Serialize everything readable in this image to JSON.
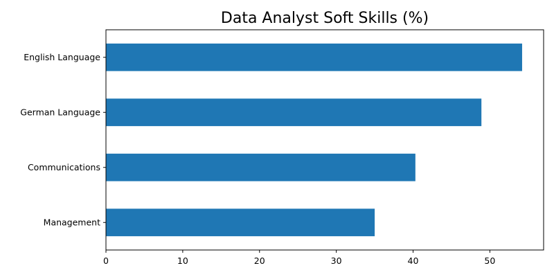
{
  "chart_data": {
    "type": "bar",
    "orientation": "horizontal",
    "title": "Data Analyst Soft Skills (%)",
    "xlabel": "",
    "ylabel": "",
    "categories": [
      "English Language",
      "German Language",
      "Communications",
      "Management"
    ],
    "values": [
      54.2,
      48.9,
      40.3,
      35.0
    ],
    "xlim": [
      0,
      57
    ],
    "xticks": [
      0,
      10,
      20,
      30,
      40,
      50
    ],
    "bar_color": "#1f77b4",
    "grid": false,
    "legend": "none"
  }
}
